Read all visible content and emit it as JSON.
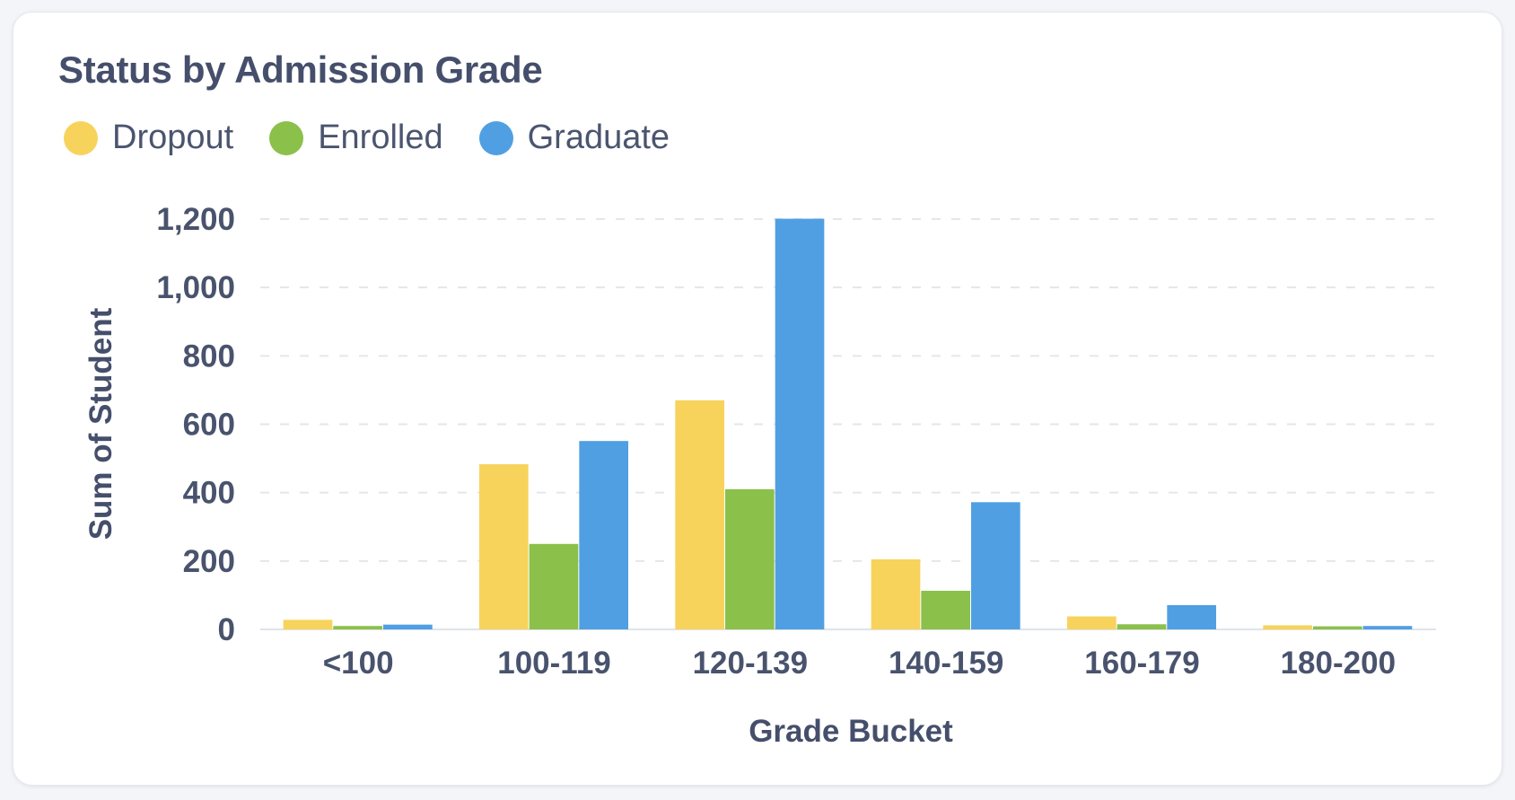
{
  "card": {
    "title": "Status by Admission Grade"
  },
  "colors": {
    "Dropout": "#f7d35c",
    "Enrolled": "#8bc04a",
    "Graduate": "#509fe3"
  },
  "chart_data": {
    "type": "bar",
    "title": "Status by Admission Grade",
    "xlabel": "Grade Bucket",
    "ylabel": "Sum of Student",
    "categories": [
      "<100",
      "100-119",
      "120-139",
      "140-159",
      "160-179",
      "180-200"
    ],
    "series": [
      {
        "name": "Dropout",
        "values": [
          28,
          483,
          670,
          205,
          38,
          12
        ]
      },
      {
        "name": "Enrolled",
        "values": [
          10,
          250,
          410,
          113,
          15,
          9
        ]
      },
      {
        "name": "Graduate",
        "values": [
          14,
          551,
          1201,
          372,
          71,
          10
        ]
      }
    ],
    "yticks": [
      "0",
      "200",
      "400",
      "600",
      "800",
      "1,000",
      "1,200"
    ],
    "ylim": [
      0,
      1200
    ],
    "grid": true,
    "legend": "top-left",
    "stacked": false
  }
}
